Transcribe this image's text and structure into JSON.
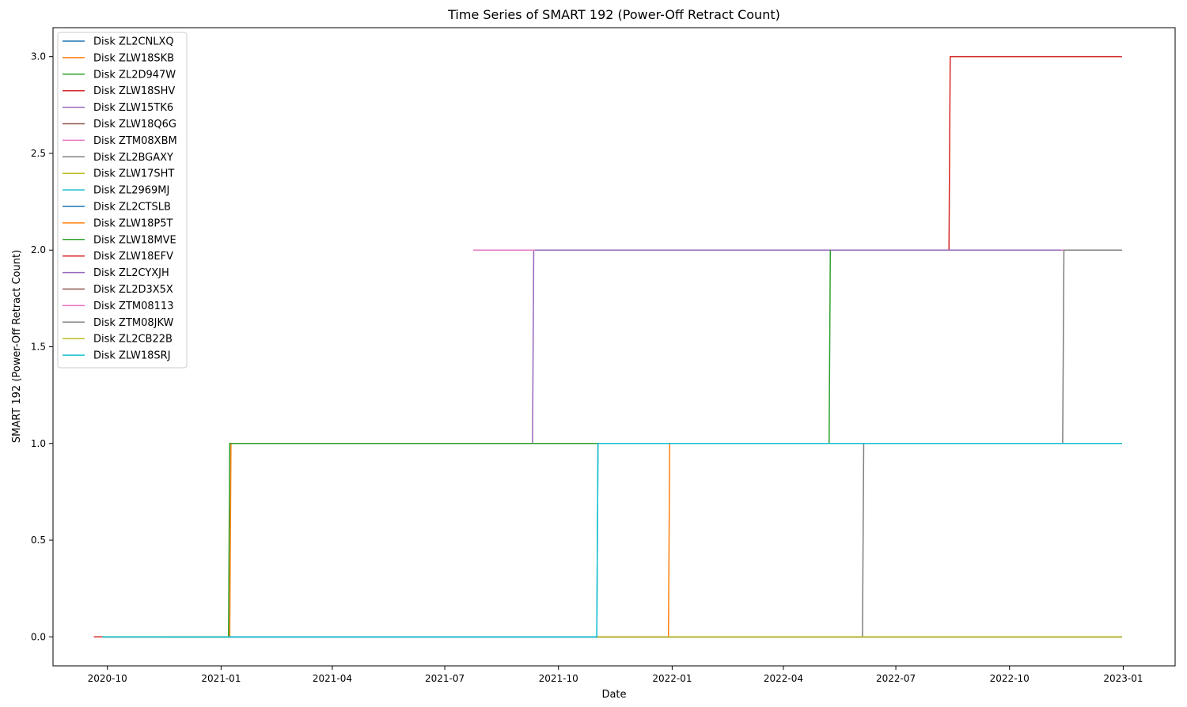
{
  "chart_data": {
    "type": "line",
    "title": "Time Series of SMART 192 (Power-Off Retract Count)",
    "xlabel": "Date",
    "ylabel": "SMART 192 (Power-Off Retract Count)",
    "xlim": [
      "2020-08-18",
      "2023-02-12"
    ],
    "ylim": [
      -0.15,
      3.15
    ],
    "x_ticks": [
      "2020-10",
      "2021-01",
      "2021-04",
      "2021-07",
      "2021-10",
      "2022-01",
      "2022-04",
      "2022-07",
      "2022-10",
      "2023-01"
    ],
    "y_ticks": [
      "0.0",
      "0.5",
      "1.0",
      "1.5",
      "2.0",
      "2.5",
      "3.0"
    ],
    "grid": false,
    "legend_position": "upper-left",
    "series": [
      {
        "name": "Disk ZL2CNLXQ",
        "color": "#1f77b4",
        "points": [
          [
            "2020-09-27",
            0
          ],
          [
            "2022-12-31",
            0
          ]
        ]
      },
      {
        "name": "Disk ZLW18SKB",
        "color": "#ff7f0e",
        "points": [
          [
            "2020-09-27",
            0
          ],
          [
            "2021-01-08",
            0
          ],
          [
            "2021-01-09",
            1
          ],
          [
            "2022-12-31",
            1
          ]
        ]
      },
      {
        "name": "Disk ZL2D947W",
        "color": "#2ca02c",
        "points": [
          [
            "2021-11-01",
            0
          ],
          [
            "2022-12-31",
            0
          ]
        ]
      },
      {
        "name": "Disk ZLW18SHV",
        "color": "#d62728",
        "points": [
          [
            "2020-09-20",
            0
          ],
          [
            "2020-09-27",
            0
          ]
        ]
      },
      {
        "name": "Disk ZLW15TK6",
        "color": "#9467bd",
        "points": [
          [
            "2021-06-01",
            1
          ],
          [
            "2021-09-10",
            1
          ],
          [
            "2021-09-11",
            2
          ],
          [
            "2022-05-09",
            2
          ]
        ]
      },
      {
        "name": "Disk ZLW18Q6G",
        "color": "#8c564b",
        "points": [
          [
            "2020-09-27",
            0
          ],
          [
            "2021-11-01",
            0
          ]
        ]
      },
      {
        "name": "Disk ZTM08XBM",
        "color": "#e377c2",
        "points": [
          [
            "2021-07-24",
            2
          ],
          [
            "2021-09-12",
            2
          ]
        ]
      },
      {
        "name": "Disk ZL2BGAXY",
        "color": "#7f7f7f",
        "points": [
          [
            "2021-11-01",
            0
          ],
          [
            "2022-06-04",
            0
          ],
          [
            "2022-06-05",
            1
          ],
          [
            "2022-12-31",
            1
          ]
        ]
      },
      {
        "name": "Disk ZLW17SHT",
        "color": "#bcbd22",
        "points": [
          [
            "2021-11-01",
            0
          ],
          [
            "2022-12-31",
            0
          ]
        ]
      },
      {
        "name": "Disk ZL2969MJ",
        "color": "#17becf",
        "points": [
          [
            "2020-09-27",
            0
          ],
          [
            "2021-11-01",
            0
          ],
          [
            "2021-11-02",
            1
          ],
          [
            "2022-12-31",
            1
          ]
        ]
      },
      {
        "name": "Disk ZL2CTSLB",
        "color": "#1f77b4",
        "points": [
          [
            "2020-11-15",
            0
          ],
          [
            "2021-11-01",
            0
          ]
        ]
      },
      {
        "name": "Disk ZLW18P5T",
        "color": "#ff7f0e",
        "points": [
          [
            "2021-11-01",
            0
          ],
          [
            "2021-12-29",
            0
          ],
          [
            "2021-12-30",
            1
          ],
          [
            "2022-12-31",
            1
          ]
        ]
      },
      {
        "name": "Disk ZLW18MVE",
        "color": "#2ca02c",
        "points": [
          [
            "2020-09-27",
            0
          ],
          [
            "2021-01-07",
            0
          ],
          [
            "2021-01-08",
            1
          ],
          [
            "2022-05-08",
            1
          ],
          [
            "2022-05-09",
            2
          ],
          [
            "2022-12-31",
            2
          ]
        ]
      },
      {
        "name": "Disk ZLW18EFV",
        "color": "#d62728",
        "points": [
          [
            "2022-05-09",
            2
          ],
          [
            "2022-08-13",
            2
          ],
          [
            "2022-08-14",
            3
          ],
          [
            "2022-12-31",
            3
          ]
        ]
      },
      {
        "name": "Disk ZL2CYXJH",
        "color": "#9467bd",
        "points": [
          [
            "2022-05-09",
            2
          ],
          [
            "2022-11-12",
            2
          ]
        ]
      },
      {
        "name": "Disk ZL2D3X5X",
        "color": "#8c564b",
        "points": [
          [
            "2021-11-01",
            0
          ],
          [
            "2022-12-31",
            0
          ]
        ]
      },
      {
        "name": "Disk ZTM08113",
        "color": "#e377c2",
        "points": [
          [
            "2022-11-12",
            2
          ],
          [
            "2022-12-31",
            2
          ]
        ]
      },
      {
        "name": "Disk ZTM08JKW",
        "color": "#7f7f7f",
        "points": [
          [
            "2022-05-09",
            1
          ],
          [
            "2022-11-13",
            1
          ],
          [
            "2022-11-14",
            2
          ],
          [
            "2022-12-31",
            2
          ]
        ]
      },
      {
        "name": "Disk ZL2CB22B",
        "color": "#bcbd22",
        "points": [
          [
            "2021-11-01",
            0
          ],
          [
            "2022-12-31",
            0
          ]
        ]
      },
      {
        "name": "Disk ZLW18SRJ",
        "color": "#17becf",
        "points": [
          [
            "2020-09-27",
            0
          ],
          [
            "2021-11-01",
            0
          ],
          [
            "2021-11-02",
            1
          ],
          [
            "2022-12-31",
            1
          ]
        ]
      }
    ]
  }
}
